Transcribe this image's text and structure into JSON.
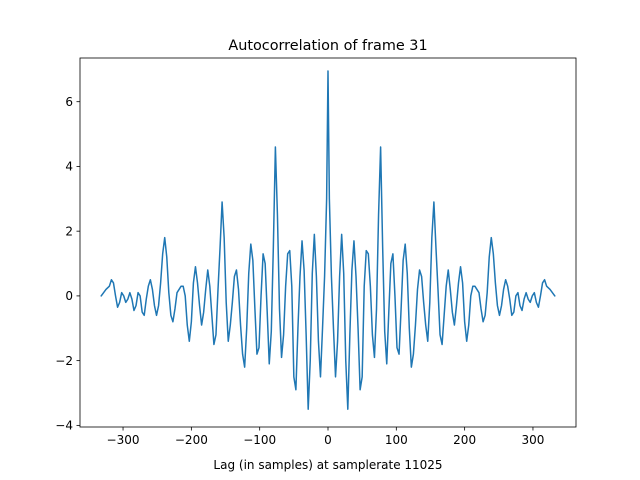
{
  "chart_data": {
    "type": "line",
    "title": "Autocorrelation of frame 31",
    "xlabel": "Lag (in samples) at samplerate 11025",
    "ylabel": "",
    "xlim": [
      -363,
      363
    ],
    "ylim": [
      -4.05,
      7.35
    ],
    "xticks": [
      -300,
      -200,
      -100,
      0,
      100,
      200,
      300
    ],
    "xtick_labels": [
      "−300",
      "−200",
      "−100",
      "0",
      "100",
      "200",
      "300"
    ],
    "yticks": [
      -4,
      -2,
      0,
      2,
      4,
      6
    ],
    "ytick_labels": [
      "−4",
      "−2",
      "0",
      "2",
      "4",
      "6"
    ],
    "grid": false,
    "legend": "none",
    "series": [
      {
        "color": "#1f77b4",
        "x": [
          -332,
          -325,
          -320,
          -317,
          -314,
          -311,
          -308,
          -305,
          -302,
          -299,
          -296,
          -293,
          -290,
          -287,
          -284,
          -281,
          -278,
          -275,
          -272,
          -269,
          -266,
          -263,
          -260,
          -257,
          -254,
          -251,
          -248,
          -245,
          -242,
          -239,
          -236,
          -233,
          -230,
          -227,
          -224,
          -221,
          -218,
          -215,
          -212,
          -209,
          -206,
          -203,
          -200,
          -197,
          -194,
          -191,
          -188,
          -185,
          -182,
          -179,
          -176,
          -173,
          -170,
          -167,
          -164,
          -161,
          -158,
          -155,
          -152,
          -149,
          -146,
          -143,
          -140,
          -137,
          -134,
          -131,
          -128,
          -125,
          -122,
          -119,
          -116,
          -113,
          -110,
          -107,
          -104,
          -101,
          -98,
          -95,
          -92,
          -89,
          -86,
          -83,
          -80,
          -77,
          -74,
          -71,
          -68,
          -65,
          -62,
          -59,
          -56,
          -53,
          -50,
          -47,
          -44,
          -41,
          -38,
          -35,
          -32,
          -29,
          -26,
          -23,
          -20,
          -17,
          -14,
          -11,
          -8,
          -5,
          -2,
          0,
          2,
          5,
          8,
          11,
          14,
          17,
          20,
          23,
          26,
          29,
          32,
          35,
          38,
          41,
          44,
          47,
          50,
          53,
          56,
          59,
          62,
          65,
          68,
          71,
          74,
          77,
          80,
          83,
          86,
          89,
          92,
          95,
          98,
          101,
          104,
          107,
          110,
          113,
          116,
          119,
          122,
          125,
          128,
          131,
          134,
          137,
          140,
          143,
          146,
          149,
          152,
          155,
          158,
          161,
          164,
          167,
          170,
          173,
          176,
          179,
          182,
          185,
          188,
          191,
          194,
          197,
          200,
          203,
          206,
          209,
          212,
          215,
          218,
          221,
          224,
          227,
          230,
          233,
          236,
          239,
          242,
          245,
          248,
          251,
          254,
          257,
          260,
          263,
          266,
          269,
          272,
          275,
          278,
          281,
          284,
          287,
          290,
          293,
          296,
          299,
          302,
          305,
          308,
          311,
          314,
          317,
          320,
          325,
          332
        ],
        "y": [
          0.0,
          0.2,
          0.3,
          0.5,
          0.4,
          0.0,
          -0.35,
          -0.2,
          0.1,
          0.0,
          -0.2,
          -0.1,
          0.1,
          -0.1,
          -0.45,
          -0.3,
          0.1,
          0.0,
          -0.5,
          -0.6,
          -0.1,
          0.3,
          0.5,
          0.2,
          -0.3,
          -0.6,
          -0.3,
          0.4,
          1.3,
          1.8,
          1.2,
          0.1,
          -0.6,
          -0.8,
          -0.4,
          0.1,
          0.2,
          0.3,
          0.3,
          0.0,
          -0.9,
          -1.4,
          -0.8,
          0.4,
          0.9,
          0.4,
          -0.3,
          -0.9,
          -0.5,
          0.2,
          0.8,
          0.3,
          -0.6,
          -1.5,
          -1.2,
          0.2,
          1.5,
          2.9,
          1.8,
          -0.2,
          -1.4,
          -0.9,
          -0.2,
          0.6,
          0.8,
          0.2,
          -0.9,
          -1.8,
          -2.2,
          -1.0,
          0.7,
          1.6,
          1.1,
          -0.4,
          -1.8,
          -1.6,
          0.0,
          1.3,
          1.0,
          -0.5,
          -2.1,
          -1.1,
          1.5,
          4.6,
          2.5,
          -0.4,
          -1.9,
          -1.2,
          0.3,
          1.3,
          1.4,
          0.3,
          -2.5,
          -2.9,
          -1.0,
          0.6,
          1.7,
          0.8,
          -1.2,
          -3.5,
          -2.0,
          0.7,
          1.9,
          0.6,
          -1.4,
          -2.5,
          -1.0,
          0.6,
          3.0,
          6.95,
          3.0,
          0.6,
          -1.0,
          -2.5,
          -1.4,
          0.6,
          1.9,
          0.7,
          -2.0,
          -3.5,
          -1.2,
          0.8,
          1.7,
          0.6,
          -1.0,
          -2.9,
          -2.5,
          0.3,
          1.4,
          1.3,
          0.3,
          -1.2,
          -1.9,
          -0.4,
          2.5,
          4.6,
          1.5,
          -1.1,
          -2.1,
          -0.5,
          1.0,
          1.3,
          0.0,
          -1.6,
          -1.8,
          -0.4,
          1.1,
          1.6,
          0.7,
          -1.0,
          -2.2,
          -1.8,
          -0.9,
          0.2,
          0.8,
          0.6,
          -0.2,
          -0.9,
          -1.4,
          -0.2,
          1.8,
          2.9,
          1.5,
          0.2,
          -1.2,
          -1.5,
          -0.6,
          0.3,
          0.8,
          0.2,
          -0.5,
          -0.9,
          -0.3,
          0.4,
          0.9,
          0.4,
          -0.8,
          -1.4,
          -0.9,
          0.0,
          0.3,
          0.3,
          0.2,
          0.1,
          -0.4,
          -0.8,
          -0.6,
          0.1,
          1.2,
          1.8,
          1.3,
          0.4,
          -0.3,
          -0.6,
          -0.3,
          0.2,
          0.5,
          0.3,
          -0.1,
          -0.6,
          -0.5,
          0.0,
          0.1,
          -0.3,
          -0.45,
          -0.1,
          0.1,
          -0.1,
          -0.2,
          0.0,
          0.1,
          -0.2,
          -0.35,
          0.0,
          0.4,
          0.5,
          0.3,
          0.2,
          0.0
        ]
      }
    ]
  }
}
